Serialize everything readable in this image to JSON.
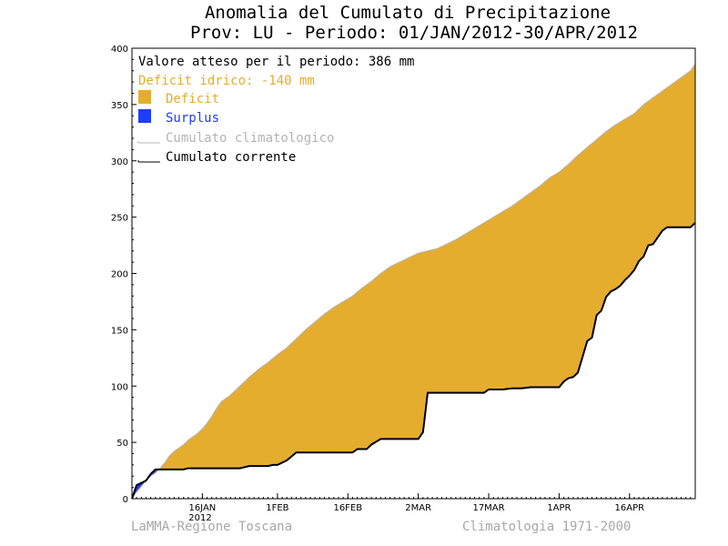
{
  "title_line1": "Anomalia del Cumulato di Precipitazione",
  "title_line2": "Prov: LU - Periodo: 01/JAN/2012-30/APR/2012",
  "legend": {
    "expected": "Valore atteso per il periodo: 386 mm",
    "deficit_text": "Deficit idrico: -140 mm",
    "deficit_label": "Deficit",
    "surplus_label": "Surplus",
    "climatological_label": "Cumulato climatologico",
    "current_label": "Cumulato corrente"
  },
  "footer_left": "LaMMA-Regione Toscana",
  "footer_right": "Climatologia 1971-2000",
  "year_label": "2012",
  "colors": {
    "deficit": "#e5ad2e",
    "surplus": "#1f3dff",
    "deficit_text": "#e5ad2e",
    "surplus_text": "#1f3dff",
    "climatological_line": "#b4b4b4",
    "current_line": "#000000"
  },
  "chart_data": {
    "type": "area",
    "xlabel": "",
    "ylabel": "",
    "xlim": [
      1,
      121
    ],
    "ylim": [
      0,
      400
    ],
    "yticks": [
      0,
      50,
      100,
      150,
      200,
      250,
      300,
      350,
      400
    ],
    "xticks": [
      {
        "day": 16,
        "label": "16JAN"
      },
      {
        "day": 32,
        "label": "1FEB"
      },
      {
        "day": 47,
        "label": "16FEB"
      },
      {
        "day": 62,
        "label": "2MAR"
      },
      {
        "day": 77,
        "label": "17MAR"
      },
      {
        "day": 92,
        "label": "1APR"
      },
      {
        "day": 107,
        "label": "16APR"
      }
    ],
    "series": [
      {
        "name": "Cumulato climatologico",
        "x": [
          1,
          2,
          3,
          4,
          5,
          6,
          7,
          8,
          9,
          10,
          11,
          12,
          13,
          14,
          15,
          16,
          17,
          18,
          19,
          20,
          22,
          24,
          26,
          28,
          30,
          32,
          34,
          36,
          38,
          40,
          42,
          44,
          46,
          48,
          50,
          52,
          54,
          56,
          58,
          60,
          62,
          64,
          66,
          68,
          70,
          72,
          74,
          76,
          78,
          80,
          82,
          84,
          86,
          88,
          90,
          92,
          94,
          96,
          98,
          100,
          102,
          104,
          106,
          108,
          110,
          112,
          114,
          116,
          118,
          120,
          121
        ],
        "y": [
          0,
          6,
          11,
          16,
          20,
          23,
          27,
          32,
          38,
          42,
          45,
          48,
          52,
          55,
          58,
          62,
          67,
          73,
          80,
          86,
          92,
          100,
          108,
          115,
          121,
          128,
          134,
          142,
          150,
          157,
          164,
          170,
          175,
          180,
          187,
          193,
          200,
          206,
          210,
          214,
          218,
          220,
          222,
          226,
          230,
          235,
          240,
          245,
          250,
          255,
          260,
          266,
          272,
          278,
          285,
          290,
          297,
          305,
          312,
          319,
          326,
          332,
          337,
          342,
          350,
          356,
          362,
          368,
          374,
          380,
          386
        ]
      },
      {
        "name": "Cumulato corrente",
        "x": [
          1,
          2,
          3,
          4,
          5,
          6,
          7,
          8,
          9,
          10,
          11,
          12,
          13,
          14,
          16,
          18,
          20,
          22,
          24,
          26,
          28,
          30,
          31,
          32,
          34,
          36,
          38,
          40,
          42,
          44,
          46,
          47,
          48,
          49,
          50,
          51,
          52,
          54,
          56,
          58,
          60,
          62,
          63,
          64,
          66,
          68,
          70,
          72,
          74,
          76,
          77,
          78,
          80,
          82,
          84,
          86,
          88,
          90,
          91,
          92,
          93,
          94,
          95,
          96,
          97,
          98,
          99,
          100,
          101,
          102,
          103,
          104,
          105,
          106,
          107,
          108,
          109,
          110,
          111,
          112,
          113,
          114,
          115,
          116,
          117,
          118,
          119,
          120,
          121
        ],
        "y": [
          0,
          12,
          14,
          16,
          22,
          26,
          26,
          26,
          26,
          26,
          26,
          26,
          27,
          27,
          27,
          27,
          27,
          27,
          27,
          29,
          29,
          29,
          30,
          30,
          34,
          41,
          41,
          41,
          41,
          41,
          41,
          41,
          41,
          44,
          44,
          44,
          48,
          53,
          53,
          53,
          53,
          53,
          59,
          94,
          94,
          94,
          94,
          94,
          94,
          94,
          97,
          97,
          97,
          98,
          98,
          99,
          99,
          99,
          99,
          99,
          104,
          107,
          108,
          112,
          126,
          140,
          143,
          163,
          167,
          179,
          184,
          186,
          189,
          194,
          198,
          203,
          211,
          215,
          225,
          226,
          232,
          238,
          241,
          241,
          241,
          241,
          241,
          241,
          245
        ]
      }
    ]
  }
}
